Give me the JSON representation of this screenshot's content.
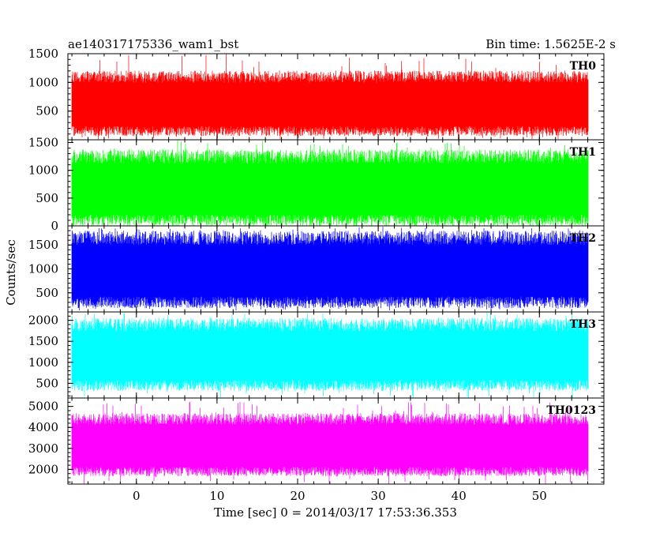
{
  "title_left": "ae140317175336_wam1_bst",
  "title_right": "Bin time: 1.5625E-2 s",
  "ylabel": "Counts/sec",
  "xlabel": "Time [sec] 0 = 2014/03/17 17:53:36.353",
  "chart_data": {
    "type": "line",
    "xlim": [
      -8.5,
      58
    ],
    "x_ticks": [
      0,
      10,
      20,
      30,
      40,
      50
    ],
    "x_range_data": [
      -8,
      56
    ],
    "panels": [
      {
        "name": "TH0",
        "color": "#ff0000",
        "ylim": [
          0,
          1500
        ],
        "yticks": [
          500,
          1000,
          1500
        ],
        "typical": [
          150,
          1100
        ],
        "spikes": [
          0,
          1500
        ],
        "tick_labels": [
          "500",
          "1000",
          "1500"
        ]
      },
      {
        "name": "TH1",
        "color": "#00ff00",
        "ylim": [
          0,
          1550
        ],
        "yticks": [
          0,
          500,
          1000,
          1500
        ],
        "typical": [
          100,
          1250
        ],
        "spikes": [
          30,
          1550
        ],
        "tick_labels": [
          "0",
          "500",
          "1000",
          "1500"
        ]
      },
      {
        "name": "TH2",
        "color": "#0000ff",
        "ylim": [
          100,
          1900
        ],
        "yticks": [
          500,
          1000,
          1500
        ],
        "typical": [
          300,
          1650
        ],
        "spikes": [
          130,
          1900
        ],
        "tick_labels": [
          "500",
          "1000",
          "1500"
        ]
      },
      {
        "name": "TH3",
        "color": "#00ffff",
        "ylim": [
          150,
          2200
        ],
        "yticks": [
          500,
          1000,
          1500,
          2000
        ],
        "typical": [
          450,
          1900
        ],
        "spikes": [
          150,
          2200
        ],
        "tick_labels": [
          "500",
          "1000",
          "1500",
          "2000"
        ]
      },
      {
        "name": "TH0123",
        "color": "#ff00ff",
        "ylim": [
          1300,
          5400
        ],
        "yticks": [
          2000,
          3000,
          4000,
          5000
        ],
        "typical": [
          1900,
          4400
        ],
        "spikes": [
          1300,
          5400
        ],
        "tick_labels": [
          "2000",
          "3000",
          "4000",
          "5000"
        ]
      }
    ]
  }
}
